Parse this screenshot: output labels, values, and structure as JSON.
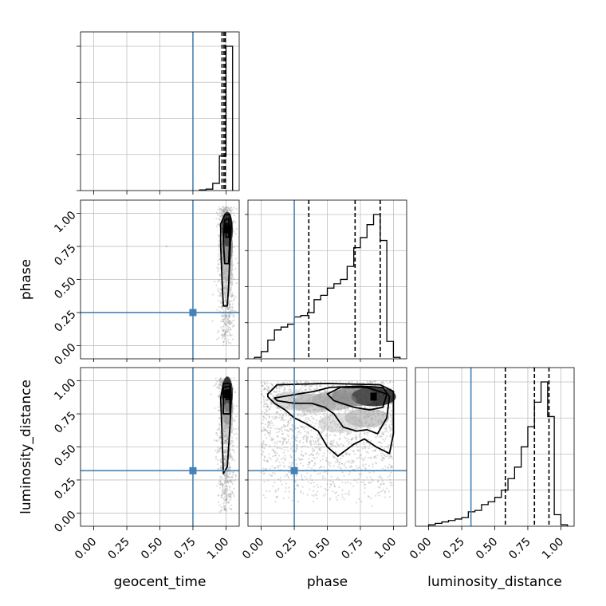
{
  "chart_data": {
    "type": "corner",
    "parameters": [
      "geocent_time",
      "phase",
      "luminosity_distance"
    ],
    "truths": {
      "geocent_time": 0.75,
      "phase": 0.25,
      "luminosity_distance": 0.32
    },
    "axis_range": [
      -0.1,
      1.1
    ],
    "tick_values": [
      0.0,
      0.25,
      0.5,
      0.75,
      1.0
    ],
    "tick_labels": [
      "0.00",
      "0.25",
      "0.50",
      "0.75",
      "1.00"
    ],
    "grid": true,
    "colors": {
      "truth": "#4682b4",
      "data": "#000000",
      "grid": "#bfbfbf",
      "samples": "#9a9a9a"
    },
    "histograms": [
      {
        "parameter": "geocent_time",
        "quantiles": [
          0.97,
          0.985,
          0.995
        ],
        "bins": [
          {
            "x0": 0.8,
            "x1": 0.85,
            "h": 0.005
          },
          {
            "x0": 0.85,
            "x1": 0.9,
            "h": 0.01
          },
          {
            "x0": 0.9,
            "x1": 0.95,
            "h": 0.05
          },
          {
            "x0": 0.95,
            "x1": 1.0,
            "h": 0.24
          },
          {
            "x0": 1.0,
            "x1": 1.05,
            "h": 1.0
          }
        ]
      },
      {
        "parameter": "phase",
        "quantiles": [
          0.36,
          0.71,
          0.9
        ],
        "bins": [
          {
            "x0": -0.05,
            "x1": 0.0,
            "h": 0.01
          },
          {
            "x0": 0.0,
            "x1": 0.05,
            "h": 0.05
          },
          {
            "x0": 0.05,
            "x1": 0.1,
            "h": 0.13
          },
          {
            "x0": 0.1,
            "x1": 0.15,
            "h": 0.2
          },
          {
            "x0": 0.15,
            "x1": 0.2,
            "h": 0.22
          },
          {
            "x0": 0.2,
            "x1": 0.25,
            "h": 0.24
          },
          {
            "x0": 0.25,
            "x1": 0.3,
            "h": 0.29
          },
          {
            "x0": 0.3,
            "x1": 0.35,
            "h": 0.3
          },
          {
            "x0": 0.35,
            "x1": 0.4,
            "h": 0.32
          },
          {
            "x0": 0.4,
            "x1": 0.45,
            "h": 0.41
          },
          {
            "x0": 0.45,
            "x1": 0.5,
            "h": 0.44
          },
          {
            "x0": 0.5,
            "x1": 0.55,
            "h": 0.49
          },
          {
            "x0": 0.55,
            "x1": 0.6,
            "h": 0.52
          },
          {
            "x0": 0.6,
            "x1": 0.65,
            "h": 0.55
          },
          {
            "x0": 0.65,
            "x1": 0.7,
            "h": 0.64
          },
          {
            "x0": 0.7,
            "x1": 0.75,
            "h": 0.77
          },
          {
            "x0": 0.75,
            "x1": 0.8,
            "h": 0.84
          },
          {
            "x0": 0.8,
            "x1": 0.85,
            "h": 0.93
          },
          {
            "x0": 0.85,
            "x1": 0.9,
            "h": 1.0
          },
          {
            "x0": 0.9,
            "x1": 0.95,
            "h": 0.82
          },
          {
            "x0": 0.95,
            "x1": 1.0,
            "h": 0.12
          },
          {
            "x0": 1.0,
            "x1": 1.05,
            "h": 0.01
          }
        ]
      },
      {
        "parameter": "luminosity_distance",
        "quantiles": [
          0.58,
          0.8,
          0.91
        ],
        "bins": [
          {
            "x0": 0.0,
            "x1": 0.05,
            "h": 0.01
          },
          {
            "x0": 0.05,
            "x1": 0.1,
            "h": 0.02
          },
          {
            "x0": 0.1,
            "x1": 0.15,
            "h": 0.03
          },
          {
            "x0": 0.15,
            "x1": 0.2,
            "h": 0.04
          },
          {
            "x0": 0.2,
            "x1": 0.25,
            "h": 0.05
          },
          {
            "x0": 0.25,
            "x1": 0.3,
            "h": 0.06
          },
          {
            "x0": 0.3,
            "x1": 0.35,
            "h": 0.1
          },
          {
            "x0": 0.35,
            "x1": 0.4,
            "h": 0.11
          },
          {
            "x0": 0.4,
            "x1": 0.45,
            "h": 0.15
          },
          {
            "x0": 0.45,
            "x1": 0.5,
            "h": 0.17
          },
          {
            "x0": 0.5,
            "x1": 0.55,
            "h": 0.2
          },
          {
            "x0": 0.55,
            "x1": 0.6,
            "h": 0.25
          },
          {
            "x0": 0.6,
            "x1": 0.65,
            "h": 0.33
          },
          {
            "x0": 0.65,
            "x1": 0.7,
            "h": 0.41
          },
          {
            "x0": 0.7,
            "x1": 0.75,
            "h": 0.55
          },
          {
            "x0": 0.75,
            "x1": 0.8,
            "h": 0.69
          },
          {
            "x0": 0.8,
            "x1": 0.85,
            "h": 0.86
          },
          {
            "x0": 0.85,
            "x1": 0.9,
            "h": 1.0
          },
          {
            "x0": 0.9,
            "x1": 0.95,
            "h": 0.76
          },
          {
            "x0": 0.95,
            "x1": 1.0,
            "h": 0.08
          },
          {
            "x0": 1.0,
            "x1": 1.05,
            "h": 0.01
          }
        ]
      }
    ],
    "pair_plots": [
      {
        "x": "geocent_time",
        "y": "phase",
        "samples": {
          "x_center": 1.0,
          "x_spread": 0.03,
          "y_min": 0.0,
          "y_max": 1.05,
          "y_peak": 0.88
        },
        "density": [
          {
            "x": 1.01,
            "y": 0.88,
            "level": 1.0
          },
          {
            "x": 1.01,
            "y": 0.75,
            "level": 0.6
          },
          {
            "x": 1.01,
            "y": 0.62,
            "level": 0.35
          },
          {
            "x": 1.01,
            "y": 0.5,
            "level": 0.15
          }
        ],
        "contours": [
          [
            [
              0.98,
              0.3
            ],
            [
              0.97,
              0.5
            ],
            [
              0.96,
              0.75
            ],
            [
              0.96,
              0.92
            ],
            [
              0.99,
              0.99
            ],
            [
              1.03,
              0.99
            ],
            [
              1.04,
              0.92
            ],
            [
              1.03,
              0.7
            ],
            [
              1.02,
              0.45
            ],
            [
              1.01,
              0.3
            ]
          ],
          [
            [
              0.99,
              0.62
            ],
            [
              0.98,
              0.8
            ],
            [
              0.99,
              0.95
            ],
            [
              1.02,
              0.96
            ],
            [
              1.03,
              0.85
            ],
            [
              1.02,
              0.62
            ]
          ],
          [
            [
              1.0,
              0.82
            ],
            [
              1.0,
              0.92
            ],
            [
              1.02,
              0.92
            ],
            [
              1.02,
              0.82
            ]
          ]
        ]
      },
      {
        "x": "geocent_time",
        "y": "luminosity_distance",
        "samples": {
          "x_center": 1.0,
          "x_spread": 0.03,
          "y_min": 0.0,
          "y_max": 1.02,
          "y_peak": 0.9
        },
        "density": [
          {
            "x": 1.01,
            "y": 0.9,
            "level": 1.0
          },
          {
            "x": 1.01,
            "y": 0.8,
            "level": 0.55
          },
          {
            "x": 1.01,
            "y": 0.7,
            "level": 0.25
          }
        ],
        "contours": [
          [
            [
              0.98,
              0.3
            ],
            [
              0.97,
              0.6
            ],
            [
              0.96,
              0.87
            ],
            [
              0.98,
              0.98
            ],
            [
              1.03,
              0.98
            ],
            [
              1.04,
              0.88
            ],
            [
              1.03,
              0.65
            ],
            [
              1.01,
              0.35
            ]
          ],
          [
            [
              0.98,
              0.75
            ],
            [
              0.98,
              0.95
            ],
            [
              1.03,
              0.96
            ],
            [
              1.03,
              0.75
            ]
          ],
          [
            [
              1.0,
              0.86
            ],
            [
              1.0,
              0.93
            ],
            [
              1.02,
              0.93
            ],
            [
              1.02,
              0.86
            ]
          ]
        ]
      },
      {
        "x": "phase",
        "y": "luminosity_distance",
        "samples": {
          "x_min": 0.0,
          "x_max": 1.0,
          "y_min": 0.05,
          "y_max": 1.0
        },
        "density": [
          {
            "x": 0.85,
            "y": 0.88,
            "level": 1.0
          },
          {
            "x": 0.7,
            "y": 0.88,
            "level": 0.6
          },
          {
            "x": 0.55,
            "y": 0.85,
            "level": 0.4
          },
          {
            "x": 0.4,
            "y": 0.83,
            "level": 0.3
          },
          {
            "x": 0.25,
            "y": 0.85,
            "level": 0.25
          },
          {
            "x": 0.8,
            "y": 0.72,
            "level": 0.35
          },
          {
            "x": 0.6,
            "y": 0.68,
            "level": 0.2
          }
        ],
        "contours": [
          [
            [
              0.05,
              0.9
            ],
            [
              0.12,
              0.97
            ],
            [
              0.5,
              0.98
            ],
            [
              0.9,
              0.97
            ],
            [
              1.0,
              0.92
            ],
            [
              1.0,
              0.6
            ],
            [
              0.97,
              0.45
            ],
            [
              0.87,
              0.5
            ],
            [
              0.78,
              0.56
            ],
            [
              0.7,
              0.52
            ],
            [
              0.58,
              0.43
            ],
            [
              0.5,
              0.5
            ],
            [
              0.43,
              0.62
            ],
            [
              0.35,
              0.67
            ],
            [
              0.25,
              0.72
            ],
            [
              0.18,
              0.78
            ],
            [
              0.1,
              0.83
            ],
            [
              0.05,
              0.88
            ]
          ],
          [
            [
              0.1,
              0.87
            ],
            [
              0.4,
              0.92
            ],
            [
              0.52,
              0.95
            ],
            [
              0.75,
              0.96
            ],
            [
              0.92,
              0.95
            ],
            [
              0.97,
              0.88
            ],
            [
              0.95,
              0.72
            ],
            [
              0.88,
              0.6
            ],
            [
              0.8,
              0.63
            ],
            [
              0.72,
              0.62
            ],
            [
              0.62,
              0.65
            ],
            [
              0.55,
              0.75
            ],
            [
              0.48,
              0.8
            ],
            [
              0.38,
              0.83
            ],
            [
              0.25,
              0.83
            ],
            [
              0.12,
              0.85
            ]
          ],
          [
            [
              0.5,
              0.9
            ],
            [
              0.6,
              0.95
            ],
            [
              0.8,
              0.95
            ],
            [
              0.95,
              0.9
            ],
            [
              0.92,
              0.8
            ],
            [
              0.82,
              0.78
            ],
            [
              0.7,
              0.8
            ],
            [
              0.55,
              0.85
            ]
          ]
        ]
      }
    ]
  }
}
